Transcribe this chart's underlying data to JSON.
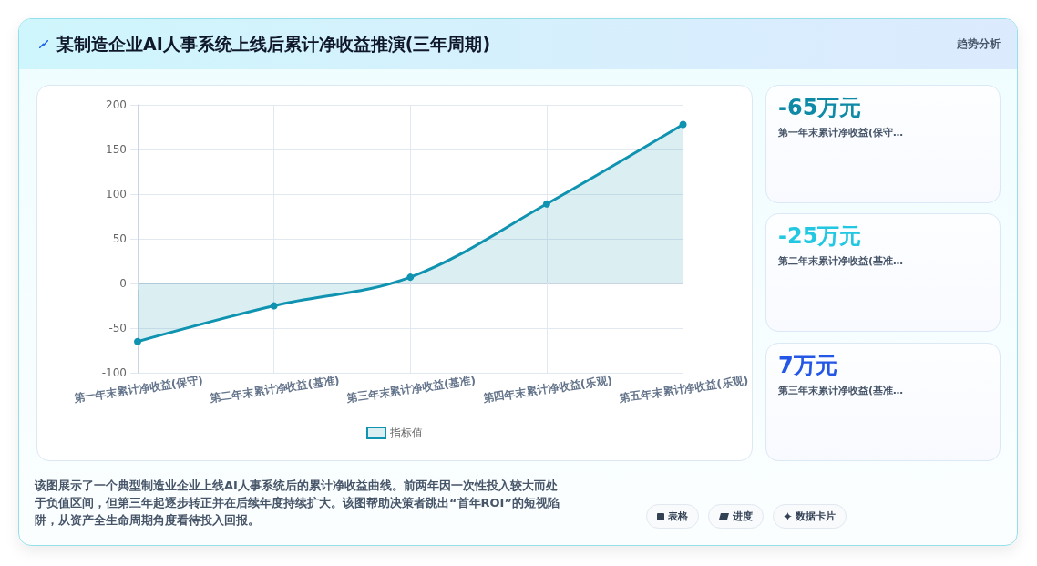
{
  "chart_data": {
    "type": "area",
    "title": "某制造企业AI人事系统上线后累计净收益推演(三年周期)",
    "categories": [
      "第一年末累计净收益(保守)",
      "第二年末累计净收益(基准)",
      "第三年末累计净收益(基准)",
      "第四年末累计净收益(乐观)",
      "第五年末累计净收益(乐观)"
    ],
    "series": [
      {
        "name": "指标值",
        "color": "#0f93b0",
        "values": [
          -65,
          -25,
          7,
          89,
          178
        ]
      }
    ],
    "ylim": [
      -100,
      200
    ],
    "yticks": [
      -100,
      -50,
      0,
      50,
      100,
      150,
      200
    ],
    "grid": true,
    "legend": "bottom",
    "marker": "circle",
    "line_style": "solid",
    "annotations": [
      "趋势分析",
      "-65万元",
      "第一年末累计净收益(保守…",
      "-25万元",
      "第二年末累计净收益(基准…",
      "7万元",
      "第三年末累计净收益(基准…",
      "该图展示了一个典型制造业企业上线AI人事系统后的累计净收益曲线。前两年因一次性投入较大而处于负值区间，但第三年起逐步转正并在后续年度持续扩大。该图帮助决策者跳出“首年ROI”的短视陷阱，从资产全生命周期角度看待投入回报。",
      "表格",
      "进度",
      "数据卡片"
    ]
  }
}
